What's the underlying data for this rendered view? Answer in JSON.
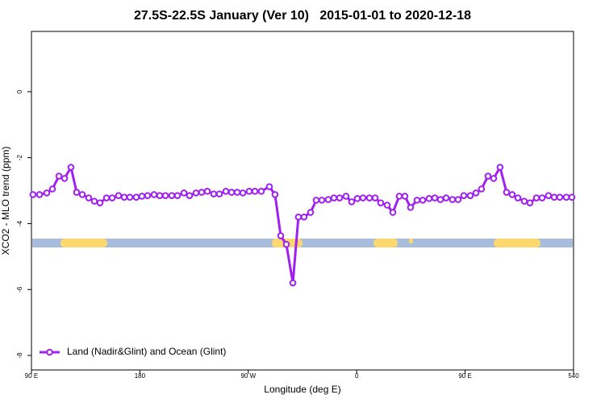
{
  "chart_data": {
    "type": "line",
    "title": "27.5S-22.5S January (Ver 10)   2015-01-01 to 2020-12-18",
    "x_label": "Longitude (deg E)",
    "y_label": "XCO2 - MLO trend (ppm)",
    "xlim": [
      90,
      540
    ],
    "ylim": [
      -8.44,
      1.83
    ],
    "xticks": [
      {
        "value": 90,
        "label": "90 E"
      },
      180,
      {
        "value": 270,
        "label": "90 W"
      },
      {
        "value": 360,
        "label": "0"
      },
      {
        "value": 450,
        "label": "90 E"
      },
      540
    ],
    "yticks": [
      -8,
      -6,
      -4,
      -2,
      0
    ],
    "legend": "bottomleft",
    "x": [
      91.3,
      96.7,
      102.7,
      107.4,
      112.8,
      117.5,
      122.8,
      127.5,
      132.2,
      137.5,
      142.2,
      146.9,
      152.3,
      157.0,
      162.3,
      167.0,
      171.7,
      177.0,
      181.7,
      186.4,
      191.8,
      196.5,
      201.2,
      206.5,
      211.2,
      216.6,
      221.2,
      226.6,
      231.3,
      236.0,
      241.3,
      246.0,
      251.4,
      256.1,
      260.8,
      265.5,
      270.8,
      275.5,
      280.8,
      287.5,
      292.2,
      296.9,
      301.6,
      307.0,
      311.6,
      316.3,
      321.7,
      326.4,
      331.1,
      336.4,
      341.1,
      345.8,
      351.1,
      355.8,
      360.5,
      365.2,
      370.6,
      375.3,
      379.9,
      385.3,
      390.0,
      395.3,
      400.0,
      404.7,
      410.1,
      414.8,
      420.1,
      424.8,
      429.5,
      434.2,
      439.5,
      444.2,
      448.9,
      454.3,
      459.0,
      463.6,
      469.0,
      473.7,
      479.0,
      484.4,
      489.1,
      493.8,
      499.1,
      503.8,
      509.2,
      513.9,
      519.2,
      523.9,
      528.6,
      534.0,
      538.6
    ],
    "series": [
      {
        "name": "Land (Nadir&Glint) and Ocean (Glint)",
        "color": "#a020f0",
        "values": [
          -3.12,
          -3.12,
          -3.07,
          -2.95,
          -2.56,
          -2.63,
          -2.29,
          -3.05,
          -3.12,
          -3.22,
          -3.32,
          -3.37,
          -3.22,
          -3.22,
          -3.15,
          -3.2,
          -3.2,
          -3.2,
          -3.17,
          -3.15,
          -3.12,
          -3.15,
          -3.15,
          -3.15,
          -3.15,
          -3.07,
          -3.15,
          -3.07,
          -3.05,
          -3.02,
          -3.1,
          -3.1,
          -3.02,
          -3.05,
          -3.05,
          -3.07,
          -3.02,
          -3.02,
          -3.02,
          -2.88,
          -3.12,
          -4.37,
          -4.63,
          -5.8,
          -3.8,
          -3.8,
          -3.66,
          -3.29,
          -3.29,
          -3.27,
          -3.22,
          -3.22,
          -3.17,
          -3.34,
          -3.24,
          -3.22,
          -3.22,
          -3.22,
          -3.37,
          -3.44,
          -3.66,
          -3.17,
          -3.17,
          -3.51,
          -3.29,
          -3.29,
          -3.24,
          -3.22,
          -3.27,
          -3.22,
          -3.27,
          -3.27,
          -3.15,
          -3.15,
          -3.07,
          -2.95,
          -2.56,
          -2.63,
          -2.29,
          -3.05,
          -3.12,
          -3.22,
          -3.32,
          -3.37,
          -3.22,
          -3.22,
          -3.15,
          -3.2,
          -3.2,
          -3.2,
          -3.2
        ]
      }
    ]
  }
}
